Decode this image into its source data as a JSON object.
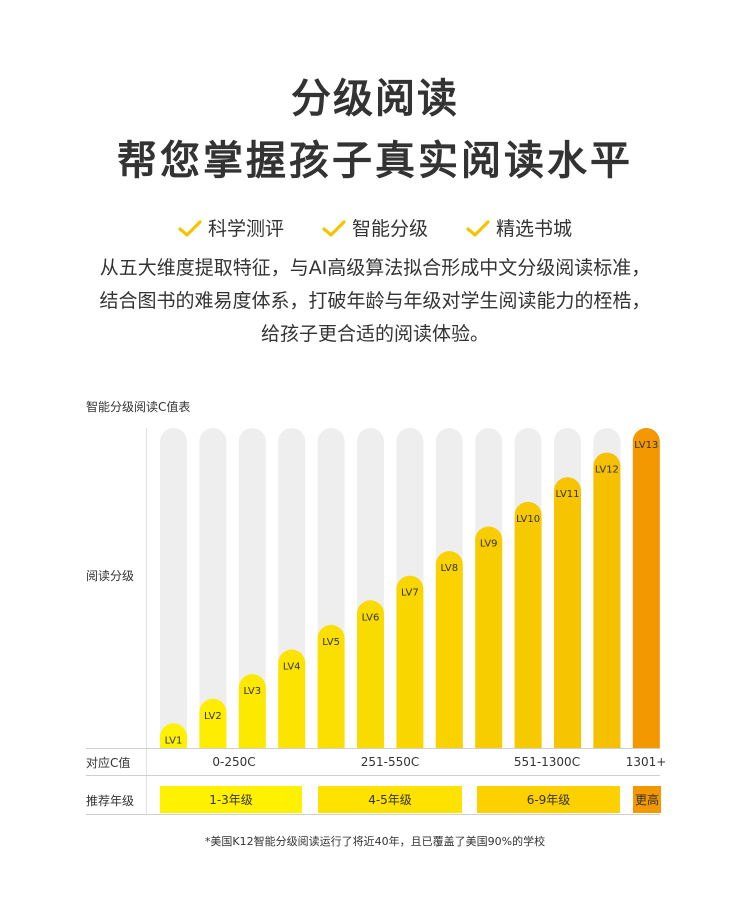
{
  "title": {
    "line1": "分级阅读",
    "line2": "帮您掌握孩子真实阅读水平"
  },
  "features": [
    {
      "label": "科学测评",
      "icon": "check-icon"
    },
    {
      "label": "智能分级",
      "icon": "check-icon"
    },
    {
      "label": "精选书城",
      "icon": "check-icon"
    }
  ],
  "description": {
    "line1": "从五大维度提取特征，与AI高级算法拟合形成中文分级阅读标准，",
    "line2": "结合图书的难易度体系，打破年龄与年级对学生阅读能力的桎梏，",
    "line3": "给孩子更合适的阅读体验。"
  },
  "colors": {
    "accent_yellow": "#fff100",
    "check_yellow": "#f5c400",
    "track_gray": "#eeeeee",
    "gradient_start": "#fff100",
    "gradient_end": "#f5c000",
    "top_level": "#f39800"
  },
  "chart_data": {
    "type": "bar",
    "title": "智能分级阅读C值表",
    "ylabel": "阅读分级",
    "categories": [
      "LV1",
      "LV2",
      "LV3",
      "LV4",
      "LV5",
      "LV6",
      "LV7",
      "LV8",
      "LV9",
      "LV10",
      "LV11",
      "LV12",
      "LV13"
    ],
    "values": [
      1,
      2,
      3,
      4,
      5,
      6,
      7,
      8,
      9,
      10,
      11,
      12,
      13
    ],
    "ylim": [
      0,
      13
    ],
    "row_labels": {
      "c_value": "对应C值",
      "grade": "推荐年级"
    },
    "c_value_ranges": [
      "0-250C",
      "251-550C",
      "551-1300C",
      "1301+"
    ],
    "grade_groups": [
      {
        "label": "1-3年级",
        "levels": [
          1,
          4
        ]
      },
      {
        "label": "4-5年级",
        "levels": [
          5,
          8
        ]
      },
      {
        "label": "6-9年级",
        "levels": [
          9,
          12
        ]
      },
      {
        "label": "更高",
        "levels": [
          13,
          13
        ]
      }
    ]
  },
  "footnote": "*美国K12智能分级阅读运行了将近40年，且已覆盖了美国90%的学校"
}
